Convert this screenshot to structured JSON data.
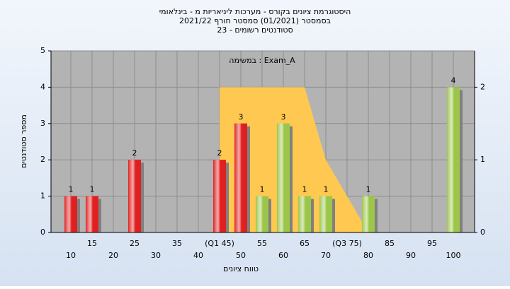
{
  "chart_data": {
    "type": "bar",
    "title": "היסטוגרמת ציונים בקורס - מערכות ליניאריות מ - בינלאומי",
    "subtitle": "בסמסטר  (01/2021)  סמסטר חורף 2021/22",
    "subtitle2": "סטודנטים רשומים - 23",
    "annotation": "במשימה : Exam_A",
    "x_label": "טווח ציונים",
    "y_label": "מספר סטודנטים",
    "categories": [
      "10",
      "15",
      "20",
      "25",
      "30",
      "35",
      "40",
      "(Q1 45)",
      "50",
      "55",
      "60",
      "65",
      "70",
      "(Q3 75)",
      "80",
      "85",
      "90",
      "95",
      "100"
    ],
    "values": [
      1,
      1,
      0,
      2,
      0,
      0,
      0,
      2,
      3,
      1,
      3,
      1,
      1,
      0,
      1,
      0,
      0,
      0,
      4
    ],
    "colors": [
      "#e02020",
      "#e02020",
      "#e02020",
      "#e02020",
      "#e02020",
      "#e02020",
      "#e02020",
      "#e02020",
      "#e02020",
      "#9cc64a",
      "#9cc64a",
      "#9cc64a",
      "#9cc64a",
      "#9cc64a",
      "#9cc64a",
      "#9cc64a",
      "#9cc64a",
      "#9cc64a",
      "#9cc64a"
    ],
    "area": {
      "axis": "y2",
      "color": "#ffc850",
      "values": [
        null,
        null,
        null,
        null,
        null,
        null,
        null,
        2,
        2,
        2,
        2,
        2,
        1,
        0.5,
        0,
        null,
        null,
        null,
        null
      ]
    },
    "ylim": [
      0,
      5
    ],
    "yticks": [
      0,
      1,
      2,
      3,
      4,
      5
    ],
    "y2lim": [
      0,
      2.5
    ],
    "y2ticks": [
      0,
      1,
      2
    ],
    "grid": true
  }
}
